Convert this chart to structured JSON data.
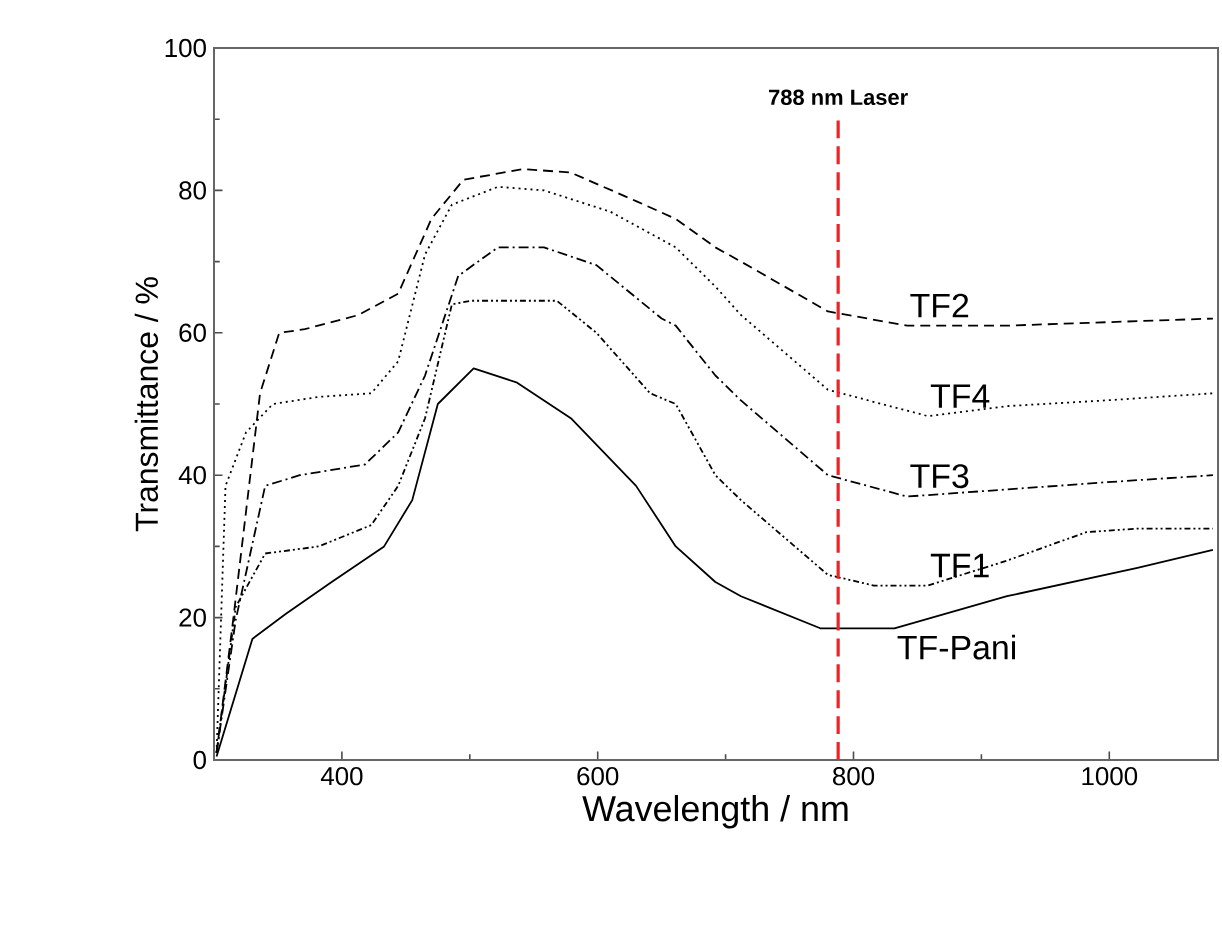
{
  "chart_data": {
    "type": "line",
    "xlabel": "Wavelength / nm",
    "ylabel": "Transmittance / %",
    "xlim": [
      300,
      1085
    ],
    "ylim": [
      0,
      100
    ],
    "xticks": [
      400,
      600,
      800,
      1000
    ],
    "yticks": [
      0,
      20,
      40,
      60,
      80,
      100
    ],
    "grid": false,
    "legend": false,
    "marker": "none",
    "ref_lines": [
      {
        "axis": "x",
        "value": 788,
        "label": "788 nm Laser",
        "color": "#e8262a",
        "line_style": "dashed"
      }
    ],
    "series": [
      {
        "name": "TF2",
        "color": "#000000",
        "line_style": "dashed",
        "x": [
          302,
          315,
          336,
          351,
          371,
          413,
          444,
          470,
          495,
          542,
          579,
          630,
          661,
          692,
          712,
          780,
          842,
          920,
          1081
        ],
        "values": [
          1,
          19.7,
          51.5,
          60,
          60.5,
          62.5,
          65.5,
          76,
          81.5,
          83,
          82.5,
          78.5,
          76,
          72,
          70,
          63,
          61,
          61,
          62
        ]
      },
      {
        "name": "TF4",
        "color": "#000000",
        "line_style": "dotted",
        "x": [
          302,
          309,
          325,
          346,
          382,
          423,
          444,
          465,
          486,
          522,
          558,
          610,
          661,
          692,
          712,
          780,
          858,
          920,
          997,
          1081
        ],
        "values": [
          1,
          38.5,
          46,
          50,
          51,
          51.5,
          56,
          71,
          78,
          80.5,
          80,
          77,
          72,
          66.5,
          62.5,
          52,
          48.3,
          49.7,
          50.5,
          51.5
        ]
      },
      {
        "name": "TF3",
        "color": "#000000",
        "line_style": "dashdot",
        "x": [
          302,
          317,
          340,
          367,
          418,
          444,
          465,
          491,
          522,
          558,
          599,
          650,
          661,
          692,
          712,
          780,
          842,
          920,
          997,
          1081
        ],
        "values": [
          1,
          19.7,
          38.5,
          40,
          41.5,
          46,
          54,
          68,
          72,
          72,
          69.5,
          62,
          61,
          54,
          50.5,
          40,
          37,
          38,
          39,
          40
        ]
      },
      {
        "name": "TF1",
        "color": "#000000",
        "line_style": "dashdotdot",
        "x": [
          302,
          317,
          340,
          382,
          423,
          444,
          465,
          486,
          501,
          568,
          599,
          641,
          661,
          692,
          712,
          780,
          816,
          858,
          920,
          982,
          1022,
          1081
        ],
        "values": [
          1,
          21.5,
          29,
          30,
          33,
          38.5,
          48,
          64,
          64.5,
          64.5,
          60,
          51.5,
          50,
          40,
          36.5,
          26,
          24.5,
          24.5,
          28,
          32,
          32.5,
          32.5
        ]
      },
      {
        "name": "TF-Pani",
        "color": "#000000",
        "line_style": "solid",
        "x": [
          302,
          330,
          356,
          392,
          433,
          455,
          475,
          503,
          537,
          579,
          630,
          661,
          692,
          712,
          774,
          832,
          920,
          1022,
          1081
        ],
        "values": [
          0.5,
          17,
          20.5,
          25,
          30,
          36.5,
          50,
          55,
          53,
          48,
          38.5,
          30,
          25,
          23,
          18.5,
          18.5,
          23,
          27,
          29.5
        ]
      }
    ]
  }
}
